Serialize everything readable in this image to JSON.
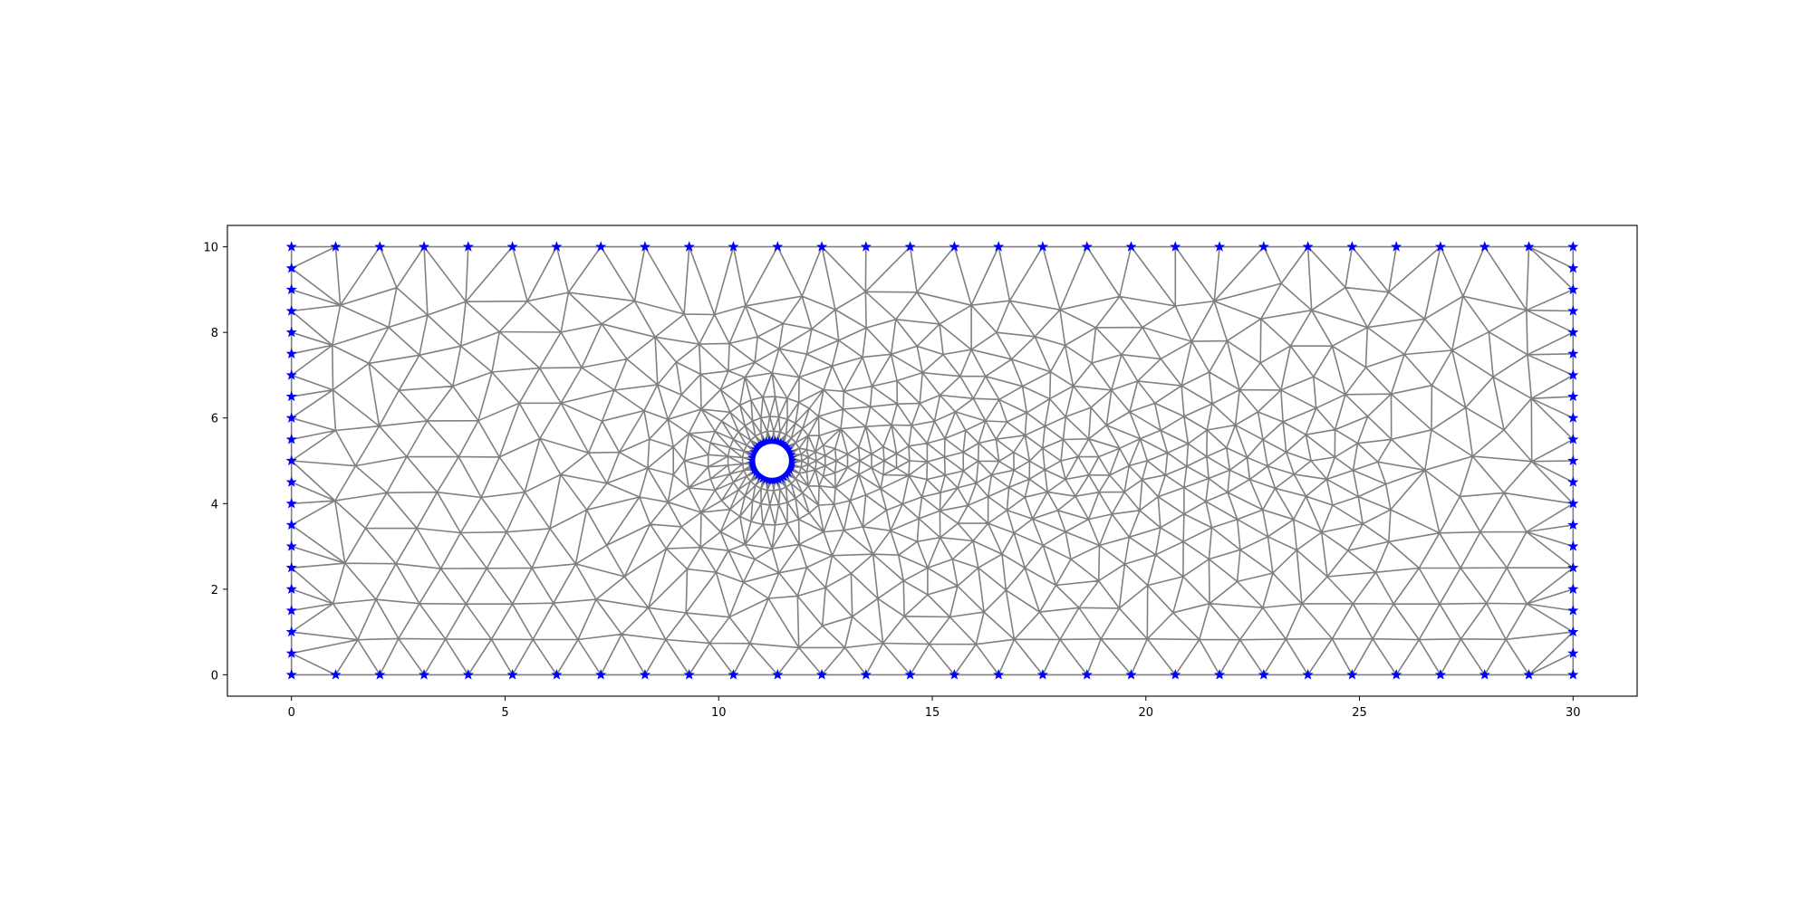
{
  "chart_data": {
    "type": "scatter",
    "title": "",
    "xlabel": "",
    "ylabel": "",
    "xlim": [
      -1.5,
      31.5
    ],
    "ylim": [
      -0.5,
      10.5
    ],
    "grid": false,
    "legend": "none",
    "x_ticks": [
      0,
      5,
      10,
      15,
      20,
      25,
      30
    ],
    "y_ticks": [
      0,
      2,
      4,
      6,
      8,
      10
    ],
    "x_tick_labels": [
      "0",
      "5",
      "10",
      "15",
      "20",
      "25",
      "30"
    ],
    "y_tick_labels": [
      "0",
      "2",
      "4",
      "6",
      "8",
      "10"
    ],
    "domain": {
      "x": [
        0,
        30
      ],
      "y": [
        0,
        10
      ]
    },
    "obstacle": {
      "shape": "circle",
      "center": [
        11.25,
        5
      ],
      "radius": 0.45
    },
    "mesh": {
      "element": "triangle",
      "color": "#808080",
      "refinement": "dense around the circular obstacle and in the wake behind it",
      "boundary_nodes_bottom": 30,
      "boundary_nodes_top": 30,
      "boundary_nodes_left": 20,
      "boundary_nodes_right": 20,
      "boundary_nodes_obstacle": 40
    },
    "series": [
      {
        "marker": "star",
        "color": "#0000ff",
        "points": "mesh boundary nodes (outer rectangle and obstacle circle)"
      }
    ]
  }
}
